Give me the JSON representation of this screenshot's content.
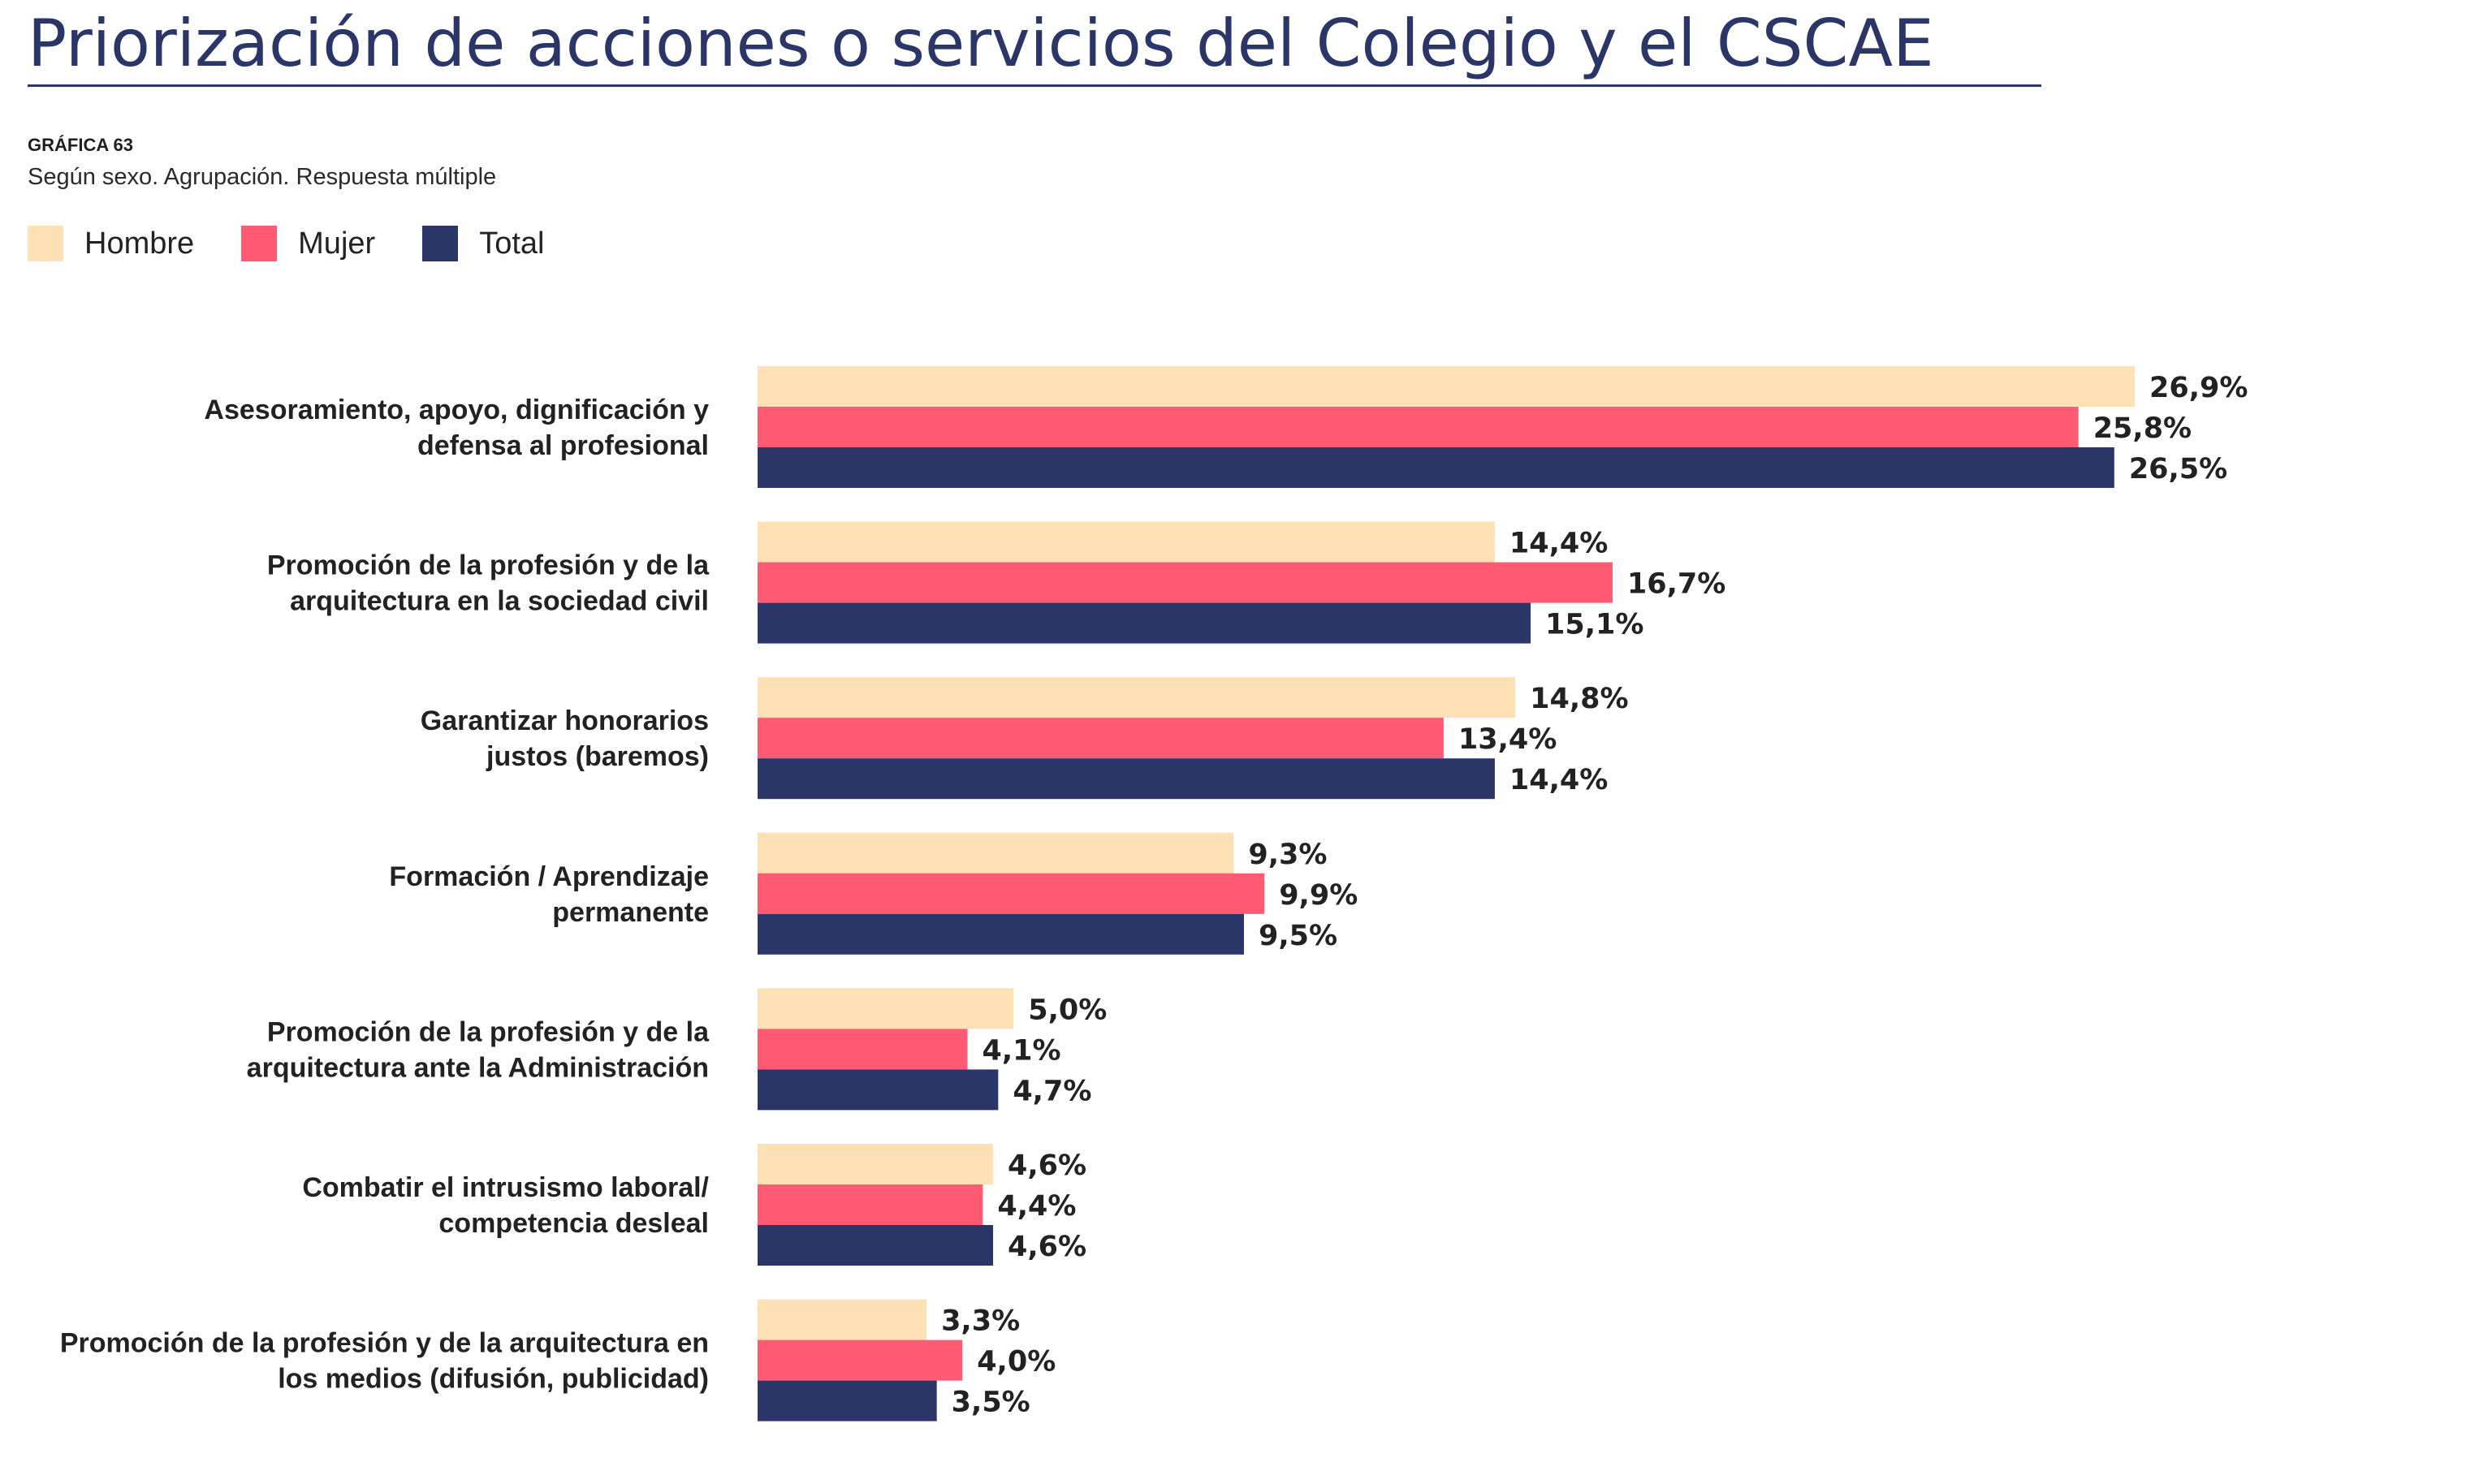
{
  "header": {
    "title": "Priorización de acciones o servicios del Colegio y el CSCAE",
    "chart_number": "GRÁFICA 63",
    "subtitle": "Según sexo. Agrupación. Respuesta múltiple"
  },
  "legend": [
    {
      "label": "Hombre",
      "color": "#fde0b3"
    },
    {
      "label": "Mujer",
      "color": "#ff5a73"
    },
    {
      "label": "Total",
      "color": "#2b3668"
    }
  ],
  "chart_data": {
    "type": "bar",
    "orientation": "horizontal",
    "title": "Priorización de acciones o servicios del Colegio y el CSCAE",
    "subtitle": "Según sexo. Agrupación. Respuesta múltiple",
    "categories": [
      "Asesoramiento, apoyo, dignificación y|defensa al profesional",
      "Promoción de la profesión y de la|arquitectura en la sociedad civil",
      "Garantizar honorarios|justos (baremos)",
      "Formación / Aprendizaje|permanente",
      "Promoción de la profesión y de la|arquitectura ante la Administración",
      "Combatir el intrusismo laboral/|competencia desleal",
      "Promoción de la profesión y de la arquitectura en|los medios (difusión, publicidad)"
    ],
    "series": [
      {
        "name": "Hombre",
        "color": "#fde0b3",
        "values": [
          26.9,
          14.4,
          14.8,
          9.3,
          5.0,
          4.6,
          3.3
        ],
        "labels": [
          "26,9%",
          "14,4%",
          "14,8%",
          "9,3%",
          "5,0%",
          "4,6%",
          "3,3%"
        ]
      },
      {
        "name": "Mujer",
        "color": "#ff5a73",
        "values": [
          25.8,
          16.7,
          13.4,
          9.9,
          4.1,
          4.4,
          4.0
        ],
        "labels": [
          "25,8%",
          "16,7%",
          "13,4%",
          "9,9%",
          "4,1%",
          "4,4%",
          "4,0%"
        ]
      },
      {
        "name": "Total",
        "color": "#2b3668",
        "values": [
          26.5,
          15.1,
          14.4,
          9.5,
          4.7,
          4.6,
          3.5
        ],
        "labels": [
          "26,5%",
          "15,1%",
          "14,4%",
          "9,5%",
          "4,7%",
          "4,6%",
          "3,5%"
        ]
      }
    ],
    "xlim": [
      0,
      30
    ],
    "grid": false,
    "legend_position": "top-left"
  }
}
